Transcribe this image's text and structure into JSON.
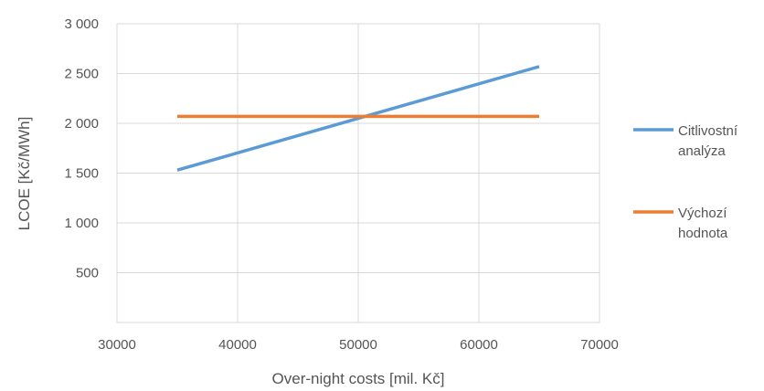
{
  "chart_data": {
    "type": "line",
    "xlabel": "Over-night costs [mil. Kč]",
    "ylabel": "LCOE [Kč/MWh]",
    "xlim": [
      30000,
      70000
    ],
    "ylim": [
      0,
      3000
    ],
    "x_ticks": [
      30000,
      40000,
      50000,
      60000,
      70000
    ],
    "x_tick_labels": [
      "30000",
      "40000",
      "50000",
      "60000",
      "70000"
    ],
    "y_ticks": [
      500,
      1000,
      1500,
      2000,
      2500,
      3000
    ],
    "y_tick_labels": [
      "500",
      "1 000",
      "1 500",
      "2 000",
      "2 500",
      "3 000"
    ],
    "grid": true,
    "legend_position": "right",
    "series": [
      {
        "name": "Citlivostní analýza",
        "legend_lines": [
          "Citlivostní",
          "analýza"
        ],
        "color": "#5B9BD5",
        "x": [
          35000,
          65000
        ],
        "y": [
          1530,
          2570
        ]
      },
      {
        "name": "Výchozí hodnota",
        "legend_lines": [
          "Výchozí",
          "hodnota"
        ],
        "color": "#ED7D31",
        "x": [
          35000,
          65000
        ],
        "y": [
          2070,
          2070
        ]
      }
    ]
  }
}
